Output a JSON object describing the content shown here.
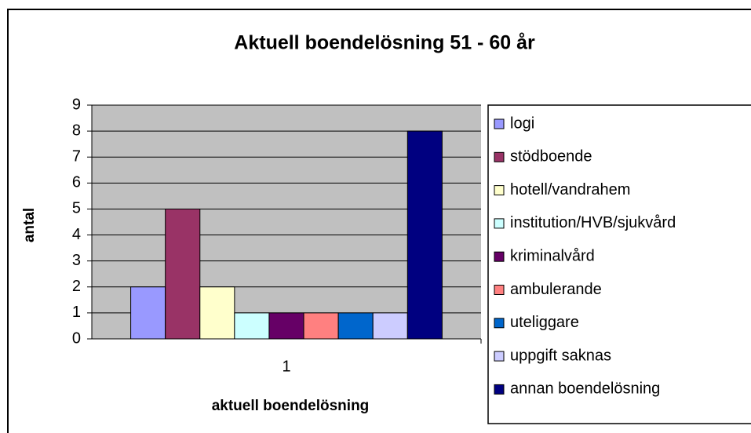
{
  "chart_data": {
    "type": "bar",
    "title": "Aktuell boendelösning 51 - 60 år",
    "x_label": "aktuell boendelösning",
    "y_label": "antal",
    "categories": [
      "1"
    ],
    "series": [
      {
        "name": "logi",
        "color": "#9999ff",
        "values": [
          2
        ]
      },
      {
        "name": "stödboende",
        "color": "#993366",
        "values": [
          5
        ]
      },
      {
        "name": "hotell/vandrahem",
        "color": "#ffffcc",
        "values": [
          2
        ]
      },
      {
        "name": "institution/HVB/sjukvård",
        "color": "#ccffff",
        "values": [
          1
        ]
      },
      {
        "name": "kriminalvård",
        "color": "#660066",
        "values": [
          1
        ]
      },
      {
        "name": "ambulerande",
        "color": "#ff8080",
        "values": [
          1
        ]
      },
      {
        "name": "uteliggare",
        "color": "#0066cc",
        "values": [
          1
        ]
      },
      {
        "name": "uppgift saknas",
        "color": "#ccccff",
        "values": [
          1
        ]
      },
      {
        "name": "annan boendelösning",
        "color": "#000080",
        "values": [
          8
        ]
      }
    ],
    "ylim": [
      0,
      9
    ],
    "yticks": [
      0,
      1,
      2,
      3,
      4,
      5,
      6,
      7,
      8,
      9
    ],
    "grid": true,
    "legend": "right"
  }
}
